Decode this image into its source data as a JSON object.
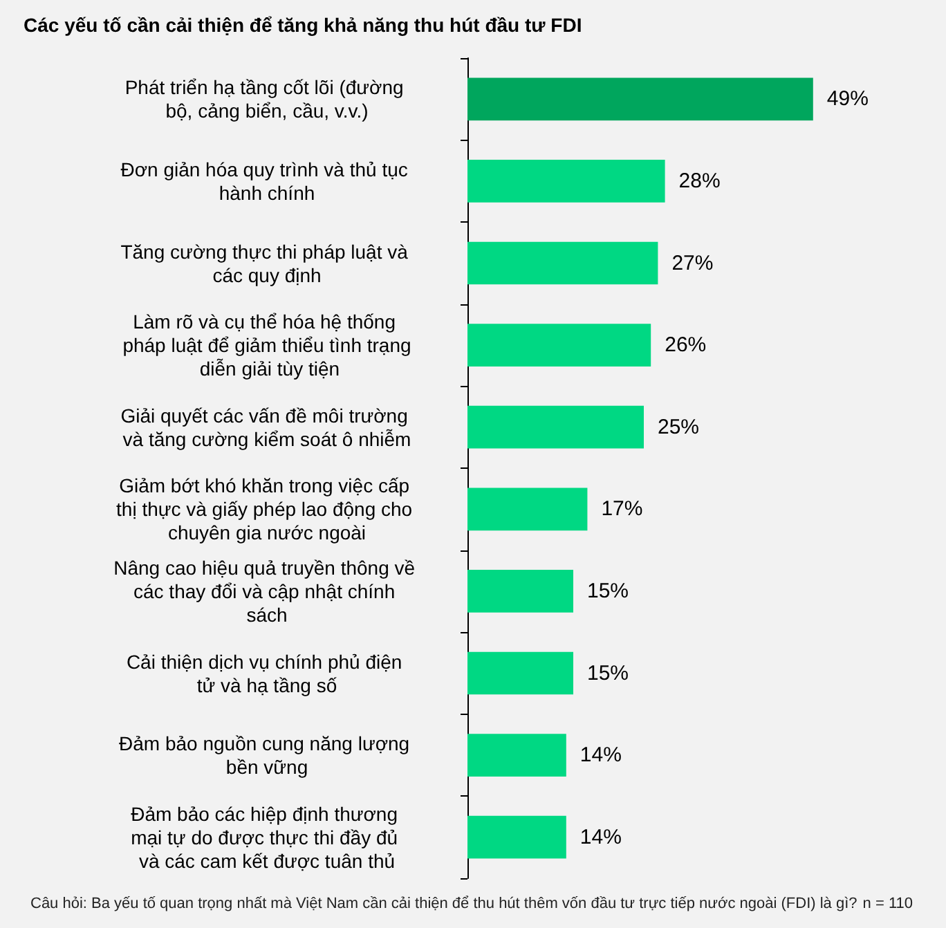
{
  "chart_data": {
    "type": "bar",
    "orientation": "horizontal",
    "title": "Các yếu tố cần cải thiện để tăng khả năng thu hút đầu tư FDI",
    "categories": [
      "Phát triển hạ tầng cốt lõi (đường bộ, cảng biển, cầu, v.v.)",
      "Đơn giản hóa quy trình và thủ tục hành chính",
      "Tăng cường thực thi pháp luật và các quy định",
      "Làm rõ và cụ thể hóa hệ thống pháp luật để giảm thiểu tình trạng diễn giải tùy tiện",
      "Giải quyết các vấn đề môi trường và tăng cường kiểm soát ô nhiễm",
      "Giảm bớt khó khăn trong việc cấp thị thực và giấy phép lao động cho chuyên gia nước ngoài",
      "Nâng cao hiệu quả truyền thông về các thay đổi và cập nhật chính sách",
      "Cải thiện dịch vụ chính phủ điện tử và hạ tầng số",
      "Đảm bảo nguồn cung năng lượng bền vững",
      "Đảm bảo các hiệp định thương mại tự do được thực thi đầy đủ và các cam kết được tuân thủ"
    ],
    "values": [
      49,
      28,
      27,
      26,
      25,
      17,
      15,
      15,
      14,
      14
    ],
    "value_labels": [
      "49%",
      "28%",
      "27%",
      "26%",
      "25%",
      "17%",
      "15%",
      "15%",
      "14%",
      "14%"
    ],
    "colors": [
      "#00a65d",
      "#00d883",
      "#00d883",
      "#00d883",
      "#00d883",
      "#00d883",
      "#00d883",
      "#00d883",
      "#00d883",
      "#00d883"
    ],
    "annotations": [
      "Câu hỏi: Ba yếu tố quan trọng nhất mà Việt Nam cần cải thiện để thu hút thêm vốn đầu tư trực tiếp nước ngoài (FDI) là gì?",
      "n = 110"
    ]
  }
}
